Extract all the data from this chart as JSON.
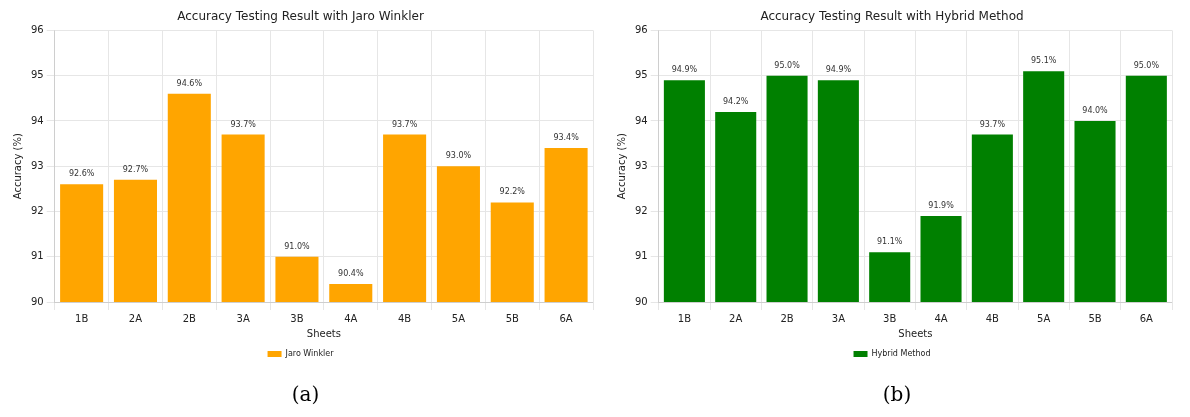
{
  "chart_data": [
    {
      "type": "bar",
      "title": "Accuracy Testing Result with Jaro Winkler",
      "xlabel": "Sheets",
      "ylabel": "Accuracy (%)",
      "categories": [
        "1B",
        "2A",
        "2B",
        "3A",
        "3B",
        "4A",
        "4B",
        "5A",
        "5B",
        "6A"
      ],
      "series": [
        {
          "name": "Jaro Winkler",
          "color": "#ffa500",
          "values": [
            92.6,
            92.7,
            94.6,
            93.7,
            91.0,
            90.4,
            93.7,
            93.0,
            92.2,
            93.4
          ],
          "value_labels": [
            "92.6%",
            "92.7%",
            "94.6%",
            "93.7%",
            "91.0%",
            "90.4%",
            "93.7%",
            "93.0%",
            "92.2%",
            "93.4%"
          ]
        }
      ],
      "ylim": [
        90,
        96
      ],
      "yticks": [
        90,
        91,
        92,
        93,
        94,
        95,
        96
      ],
      "grid": true,
      "legend": "bottom",
      "annotations": [
        "(a)"
      ]
    },
    {
      "type": "bar",
      "title": "Accuracy Testing Result with Hybrid Method",
      "xlabel": "Sheets",
      "ylabel": "Accuracy (%)",
      "categories": [
        "1B",
        "2A",
        "2B",
        "3A",
        "3B",
        "4A",
        "4B",
        "5A",
        "5B",
        "6A"
      ],
      "series": [
        {
          "name": "Hybrid Method",
          "color": "#008000",
          "values": [
            94.9,
            94.2,
            95.0,
            94.9,
            91.1,
            91.9,
            93.7,
            95.1,
            94.0,
            95.0
          ],
          "value_labels": [
            "94.9%",
            "94.2%",
            "95.0%",
            "94.9%",
            "91.1%",
            "91.9%",
            "93.7%",
            "95.1%",
            "94.0%",
            "95.0%"
          ]
        }
      ],
      "ylim": [
        90,
        96
      ],
      "yticks": [
        90,
        91,
        92,
        93,
        94,
        95,
        96
      ],
      "grid": true,
      "legend": "bottom",
      "annotations": [
        "(b)"
      ]
    }
  ]
}
